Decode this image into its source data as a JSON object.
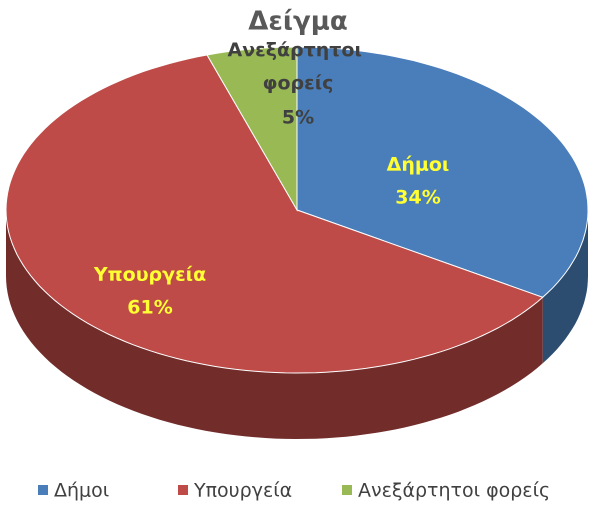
{
  "chart_data": {
    "type": "pie",
    "title": "Δείγμα",
    "categories": [
      "Δήμοι",
      "Υπουργεία",
      "Ανεξάρτητοι φορείς"
    ],
    "values": [
      34,
      61,
      5
    ],
    "value_labels": [
      "34%",
      "61%",
      "5%"
    ],
    "colors": [
      "#4a7ebb",
      "#be4b48",
      "#98b954"
    ],
    "legend": "bottom"
  }
}
